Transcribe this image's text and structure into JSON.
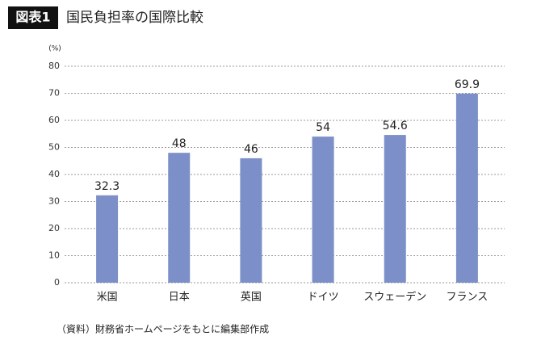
{
  "chart_data": {
    "type": "bar",
    "figure_label": "図表1",
    "title": "国民負担率の国際比較",
    "y_unit": "(%)",
    "categories": [
      "米国",
      "日本",
      "英国",
      "ドイツ",
      "スウェーデン",
      "フランス"
    ],
    "values": [
      32.3,
      48,
      46,
      54,
      54.6,
      69.9
    ],
    "color": "#7c8fc8",
    "ylim": [
      0,
      80
    ],
    "yticks": [
      0,
      10,
      20,
      30,
      40,
      50,
      60,
      70,
      80
    ],
    "grid": true,
    "source": "（資料）財務省ホームページをもとに編集部作成"
  }
}
